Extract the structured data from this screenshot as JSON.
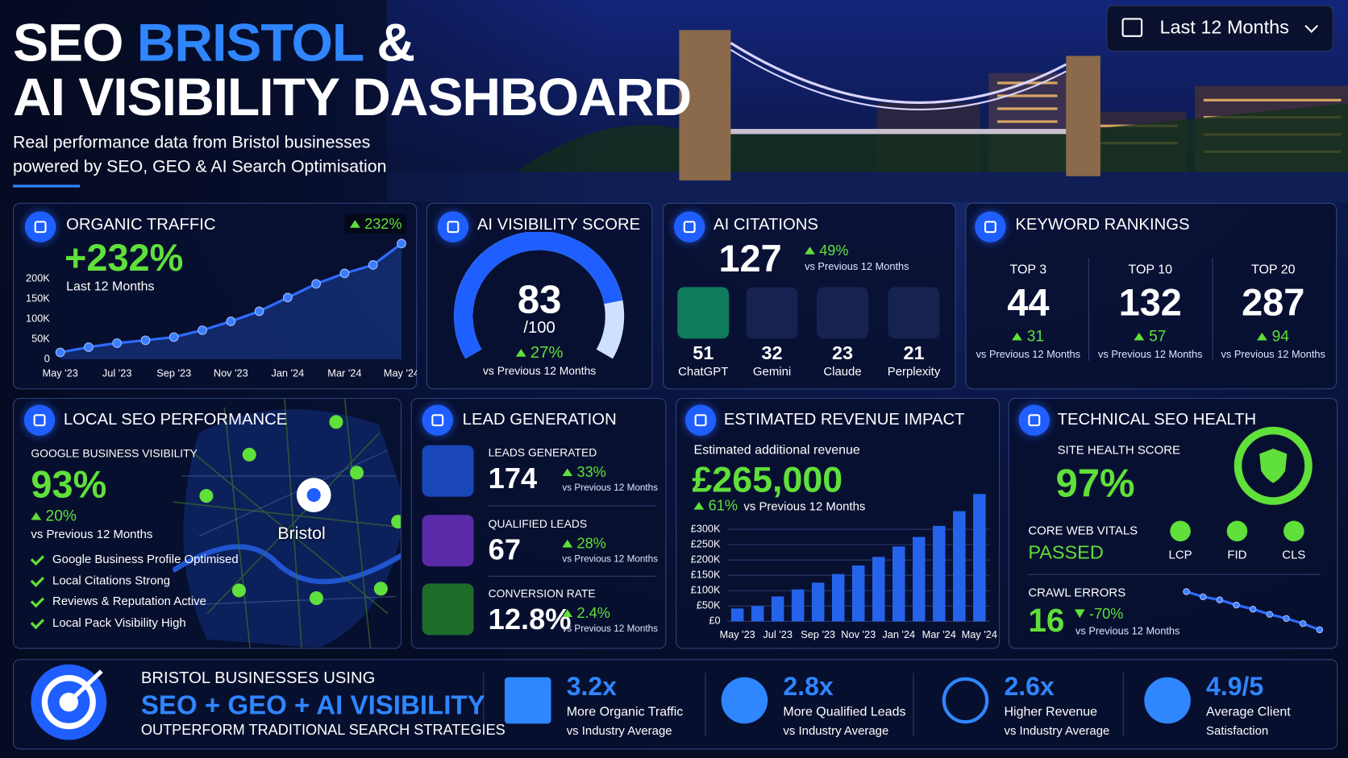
{
  "header": {
    "title_1": "SEO",
    "title_highlight": "BRISTOL",
    "title_2": "&",
    "title_line2": "AI VISIBILITY DASHBOARD",
    "subtitle_1": "Real performance data from Bristol businesses",
    "subtitle_2": "powered by SEO, GEO & AI Search Optimisation",
    "period": "Last 12 Months"
  },
  "organic_traffic": {
    "title": "ORGANIC TRAFFIC",
    "badge": "232%",
    "headline": "+232%",
    "caption": "Last 12 Months"
  },
  "ai_visibility": {
    "title": "AI VISIBILITY SCORE",
    "score": 83,
    "max": 100,
    "max_label": "/100",
    "change": "27%",
    "caption": "vs Previous 12 Months"
  },
  "ai_citations": {
    "title": "AI CITATIONS",
    "total": 127,
    "change": "49%",
    "caption": "vs Previous 12 Months",
    "sources": [
      {
        "count": 51,
        "name": "ChatGPT"
      },
      {
        "count": 32,
        "name": "Gemini"
      },
      {
        "count": 23,
        "name": "Claude"
      },
      {
        "count": 21,
        "name": "Perplexity"
      }
    ]
  },
  "keyword_rankings": {
    "title": "KEYWORD RANKINGS",
    "groups": [
      {
        "label": "TOP 3",
        "value": 44,
        "change": 31,
        "caption": "vs Previous 12 Months"
      },
      {
        "label": "TOP 10",
        "value": 132,
        "change": 57,
        "caption": "vs Previous 12 Months"
      },
      {
        "label": "TOP 20",
        "value": 287,
        "change": 94,
        "caption": "vs Previous 12 Months"
      }
    ]
  },
  "local_seo": {
    "title": "LOCAL SEO PERFORMANCE",
    "metric_label": "GOOGLE BUSINESS VISIBILITY",
    "metric": "93%",
    "change": "20%",
    "caption": "vs Previous 12 Months",
    "map_label": "Bristol",
    "checklist": [
      "Google Business Profile Optimised",
      "Local Citations Strong",
      "Reviews & Reputation Active",
      "Local Pack Visibility High"
    ]
  },
  "lead_generation": {
    "title": "LEAD GENERATION",
    "items": [
      {
        "label": "LEADS GENERATED",
        "value": 174,
        "change": "33%",
        "caption": "vs Previous 12 Months"
      },
      {
        "label": "QUALIFIED LEADS",
        "value": 67,
        "change": "28%",
        "caption": "vs Previous 12 Months"
      },
      {
        "label": "CONVERSION RATE",
        "value": "12.8%",
        "change": "2.4%",
        "caption": "vs Previous 12 Months"
      }
    ]
  },
  "revenue": {
    "title": "ESTIMATED REVENUE IMPACT",
    "caption": "Estimated additional revenue",
    "amount": "£265,000",
    "change": "61%",
    "change_caption": "vs Previous 12 Months"
  },
  "technical_seo": {
    "title": "TECHNICAL SEO HEALTH",
    "site_health_label": "SITE HEALTH SCORE",
    "site_health": "97%",
    "cwv_label": "CORE WEB VITALS",
    "cwv_status": "PASSED",
    "vitals": [
      "LCP",
      "FID",
      "CLS"
    ],
    "crawl_label": "CRAWL ERRORS",
    "crawl_errors": 16,
    "crawl_change": "-70%",
    "crawl_caption": "vs Previous 12 Months"
  },
  "footer": {
    "line1": "BRISTOL BUSINESSES USING",
    "line2": "SEO + GEO + AI VISIBILITY",
    "line3": "OUTPERFORM TRADITIONAL SEARCH STRATEGIES",
    "stats": [
      {
        "value": "3.2x",
        "label": "More Organic Traffic",
        "caption": "vs Industry Average"
      },
      {
        "value": "2.8x",
        "label": "More Qualified Leads",
        "caption": "vs Industry Average"
      },
      {
        "value": "2.6x",
        "label": "Higher Revenue",
        "caption": "vs Industry Average"
      },
      {
        "value": "4.9/5",
        "label": "Average Client",
        "caption": "Satisfaction"
      }
    ]
  },
  "chart_data": [
    {
      "type": "line",
      "color": "#2f6bff",
      "grid": false,
      "categories": [
        "May '23",
        null,
        "Jul '23",
        null,
        "Sep '23",
        null,
        "Nov '23",
        null,
        "Jan '24",
        null,
        "Mar '24",
        null,
        "May '24"
      ],
      "values": [
        17000,
        30000,
        40000,
        47000,
        55000,
        72000,
        94000,
        119000,
        153000,
        187000,
        213000,
        234000,
        287000
      ],
      "ylim": [
        0,
        290000
      ],
      "yticks": [
        0,
        {
          "value": 50000,
          "label": "50K"
        },
        {
          "value": 100000,
          "label": "100K"
        },
        {
          "value": 150000,
          "label": "150K"
        },
        {
          "value": 200000,
          "label": "200K"
        }
      ]
    },
    {
      "type": "bar",
      "color": "#2563eb",
      "grid": true,
      "categories": [
        "May '23",
        null,
        "Jul '23",
        null,
        "Sep '23",
        null,
        "Nov '23",
        null,
        "Jan '24",
        null,
        "Mar '24",
        null,
        "May '24"
      ],
      "values": [
        42000,
        50000,
        81000,
        104000,
        126000,
        154000,
        182000,
        210000,
        244000,
        275000,
        311000,
        359000,
        415000
      ],
      "ylim": [
        0,
        420000
      ],
      "yticks": [
        {
          "value": 0,
          "label": "£0"
        },
        {
          "value": 50000,
          "label": "£50K"
        },
        {
          "value": 100000,
          "label": "£100K"
        },
        {
          "value": 150000,
          "label": "£150K"
        },
        {
          "value": 200000,
          "label": "£200K"
        },
        {
          "value": 250000,
          "label": "£250K"
        },
        {
          "value": 300000,
          "label": "£300K"
        }
      ]
    },
    {
      "type": "line",
      "color": "#2f6bff",
      "grid": false,
      "values": [
        53,
        48,
        45,
        40,
        36,
        31,
        27,
        22,
        16
      ],
      "ylim": [
        10,
        60
      ]
    }
  ]
}
